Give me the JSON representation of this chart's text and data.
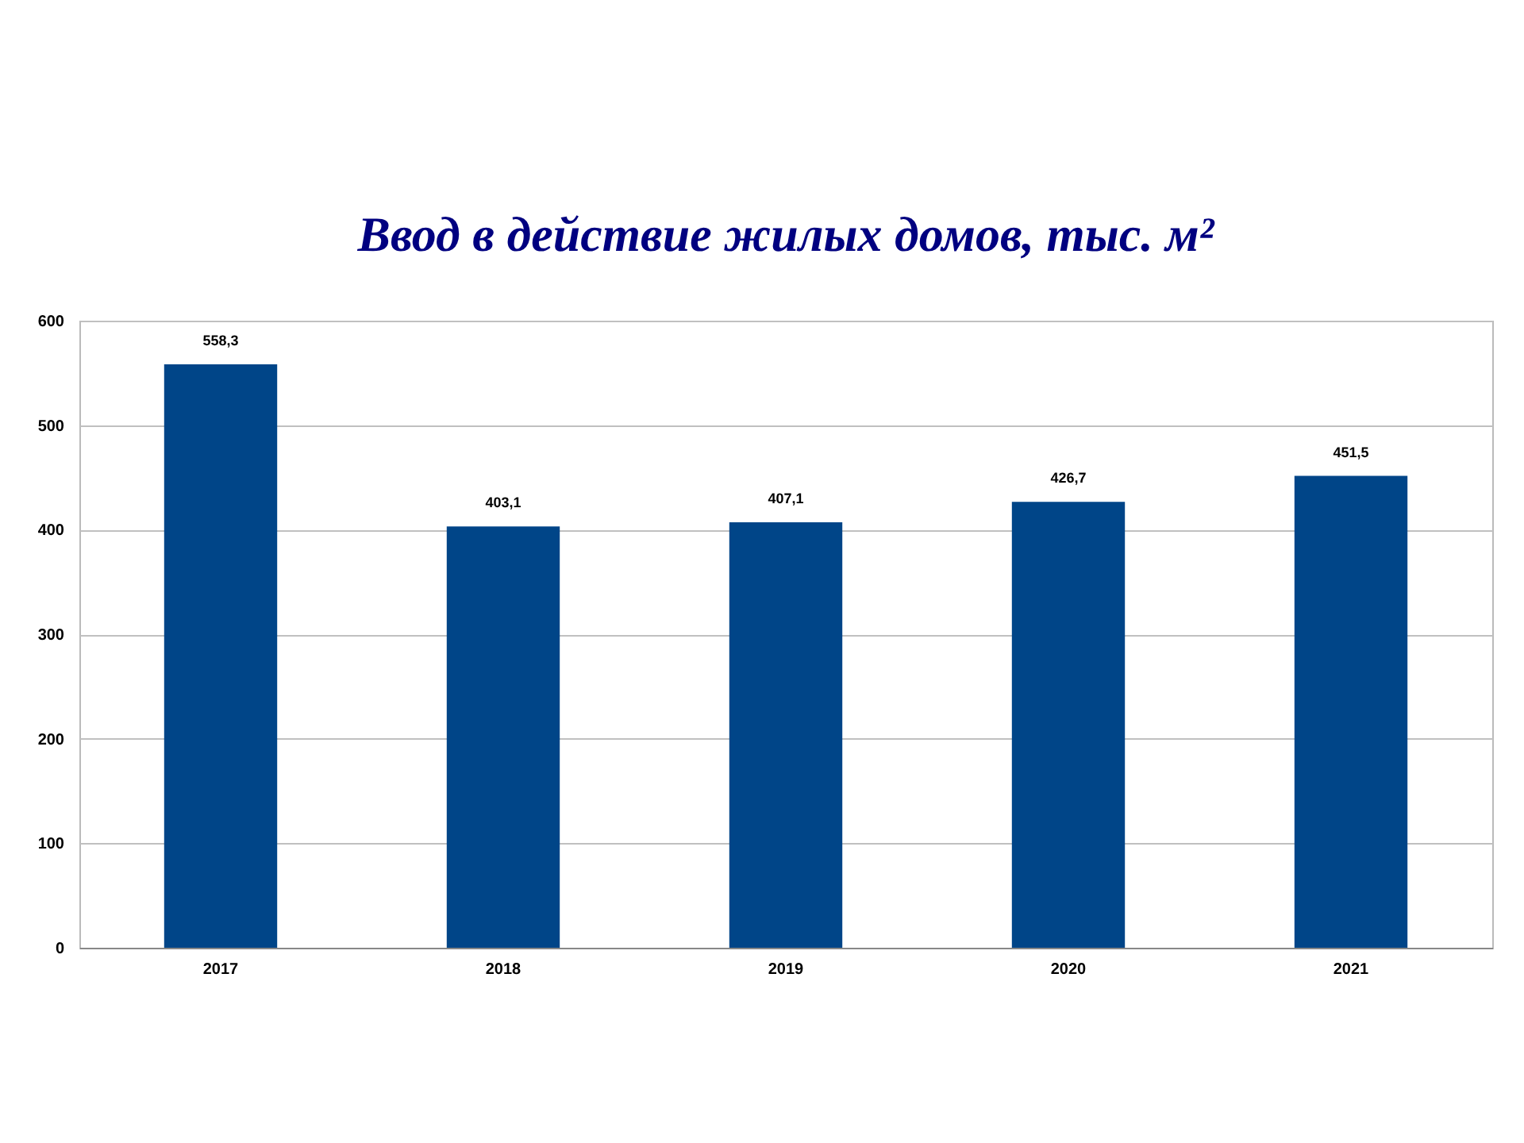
{
  "chart_data": {
    "type": "bar",
    "title": "Ввод в действие жилых домов, тыс. м²",
    "categories": [
      "2017",
      "2018",
      "2019",
      "2020",
      "2021"
    ],
    "values": [
      558.3,
      403.1,
      407.1,
      426.7,
      451.5
    ],
    "value_labels": [
      "558,3",
      "403,1",
      "407,1",
      "426,7",
      "451,5"
    ],
    "color": "#004588",
    "ylim": [
      0,
      600
    ],
    "yticks": [
      0,
      100,
      200,
      300,
      400,
      500,
      600
    ],
    "grid": "y"
  }
}
